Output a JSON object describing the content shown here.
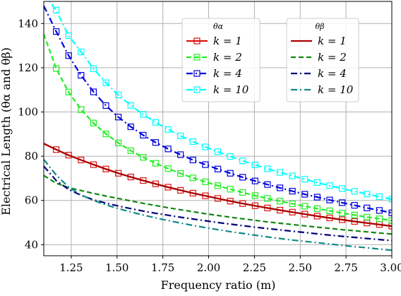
{
  "chart_data": {
    "type": "line",
    "title": "",
    "xlabel": "Frequency ratio (m)",
    "ylabel": "Electrical Length (θα and θβ)",
    "xlim": [
      1.1,
      3.0
    ],
    "ylim": [
      35,
      150
    ],
    "xticks": [
      "1.25",
      "1.50",
      "1.75",
      "2.00",
      "2.25",
      "2.50",
      "2.75",
      "3.00"
    ],
    "yticks": [
      "40",
      "60",
      "80",
      "100",
      "120",
      "140"
    ],
    "grid": true,
    "legends": [
      {
        "title": "θα",
        "placement": "top-center",
        "entries": [
          "k = 1",
          "k = 2",
          "k = 4",
          "k = 10"
        ]
      },
      {
        "title": "θβ",
        "placement": "top-right",
        "entries": [
          "k = 1",
          "k = 2",
          "k = 4",
          "k = 10"
        ]
      }
    ],
    "x": [
      1.1,
      1.1678571428571427,
      1.2357142857142858,
      1.3035714285714286,
      1.3714285714285714,
      1.4392857142857143,
      1.5071428571428571,
      1.5750000000000002,
      1.6428571428571428,
      1.7107142857142856,
      1.7785714285714287,
      1.8464285714285713,
      1.9142857142857144,
      1.9821428571428572,
      2.05,
      2.117857142857143,
      2.1857142857142855,
      2.2535714285714286,
      2.3214285714285716,
      2.3892857142857142,
      2.4571428571428573,
      2.5249999999999995,
      2.592857142857143,
      2.6607142857142856,
      2.7285714285714286,
      2.7964285714285717,
      2.8642857142857143,
      2.9321428571428574,
      3.0
    ],
    "series": [
      {
        "name": "k = 1",
        "group": "θα",
        "color": "#dd1111",
        "style": "solid",
        "marker": "square",
        "values": [
          85.7,
          83.0,
          80.5,
          78.3,
          76.2,
          74.2,
          72.3,
          70.6,
          69.0,
          67.5,
          66.0,
          64.6,
          63.3,
          62.1,
          60.9,
          59.7,
          58.6,
          57.6,
          56.6,
          55.6,
          54.7,
          53.8,
          52.9,
          52.1,
          51.3,
          50.5,
          49.8,
          49.1,
          48.4
        ]
      },
      {
        "name": "k = 2",
        "group": "θα",
        "color": "#22ee22",
        "style": "dashed",
        "marker": "square",
        "values": [
          135.2,
          119.7,
          109.0,
          101.1,
          95.0,
          90.1,
          86.0,
          82.5,
          79.5,
          76.8,
          74.4,
          72.2,
          70.2,
          68.4,
          66.7,
          65.1,
          63.6,
          62.2,
          60.9,
          59.7,
          58.5,
          57.4,
          56.3,
          55.3,
          54.3,
          53.4,
          52.5,
          51.7,
          50.9
        ]
      },
      {
        "name": "k = 4",
        "group": "θα",
        "color": "#0000dd",
        "style": "dashdot",
        "marker": "square",
        "values": [
          148.0,
          136.4,
          125.5,
          116.6,
          109.1,
          102.9,
          97.7,
          93.3,
          89.5,
          86.2,
          83.3,
          80.7,
          78.3,
          76.2,
          74.2,
          72.3,
          70.5,
          68.8,
          67.2,
          65.7,
          64.2,
          62.8,
          61.5,
          60.2,
          59.0,
          57.8,
          56.6,
          55.5,
          54.4
        ]
      },
      {
        "name": "k = 10",
        "group": "θα",
        "color": "#00ffff",
        "style": "dashdot",
        "marker": "square",
        "values": [
          153.5,
          146.0,
          134.5,
          127.2,
          119.6,
          113.2,
          107.7,
          103.0,
          98.9,
          95.3,
          92.1,
          89.2,
          86.6,
          84.2,
          82.0,
          79.9,
          77.9,
          76.1,
          74.3,
          72.7,
          71.1,
          69.6,
          68.1,
          66.7,
          65.4,
          64.1,
          62.9,
          61.7,
          60.6
        ]
      },
      {
        "name": "k = 1",
        "group": "θβ",
        "color": "#aa0000",
        "style": "solid",
        "marker": "none",
        "values": [
          85.7,
          83.0,
          80.5,
          78.3,
          76.2,
          74.2,
          72.3,
          70.6,
          69.0,
          67.5,
          66.0,
          64.6,
          63.3,
          62.1,
          60.9,
          59.7,
          58.6,
          57.6,
          56.6,
          55.6,
          54.7,
          53.8,
          52.9,
          52.1,
          51.3,
          50.5,
          49.8,
          49.1,
          48.4
        ]
      },
      {
        "name": "k = 2",
        "group": "θβ",
        "color": "#118811",
        "style": "dashed",
        "marker": "none",
        "values": [
          71.3,
          67.8,
          65.8,
          64.5,
          63.2,
          62.0,
          60.9,
          59.8,
          58.7,
          57.7,
          56.7,
          55.8,
          54.9,
          54.0,
          53.2,
          52.4,
          51.7,
          51.0,
          50.3,
          49.7,
          49.1,
          48.5,
          47.9,
          47.4,
          46.8,
          46.3,
          45.8,
          45.3,
          44.8
        ]
      },
      {
        "name": "k = 4",
        "group": "θβ",
        "color": "#000077",
        "style": "dashdot",
        "marker": "none",
        "values": [
          75.5,
          69.0,
          65.0,
          62.3,
          60.3,
          58.8,
          57.5,
          56.3,
          55.2,
          54.2,
          53.3,
          52.4,
          51.6,
          50.8,
          50.0,
          49.3,
          48.6,
          47.9,
          47.3,
          46.7,
          46.1,
          45.5,
          44.9,
          44.3,
          43.8,
          43.3,
          42.8,
          42.3,
          41.8
        ]
      },
      {
        "name": "k = 10",
        "group": "θβ",
        "color": "#118888",
        "style": "dashdot",
        "marker": "none",
        "values": [
          78.5,
          71.5,
          66.0,
          62.5,
          60.0,
          58.0,
          56.3,
          54.8,
          53.4,
          52.1,
          50.9,
          49.8,
          48.7,
          47.7,
          46.8,
          45.9,
          45.1,
          44.3,
          43.5,
          42.8,
          42.1,
          41.5,
          40.9,
          40.3,
          39.7,
          39.1,
          38.6,
          38.0,
          37.5
        ]
      }
    ]
  }
}
